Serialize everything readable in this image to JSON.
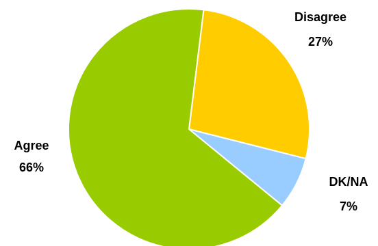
{
  "chart_data": {
    "type": "pie",
    "title": "",
    "slices": [
      {
        "name": "Disagree",
        "value": 27,
        "value_label": "27%",
        "color": "#FFCC00"
      },
      {
        "name": "DK/NA",
        "value": 7,
        "value_label": "7%",
        "color": "#99CCFF"
      },
      {
        "name": "Agree",
        "value": 66,
        "value_label": "66%",
        "color": "#99CC00"
      }
    ],
    "start_angle_deg": 7,
    "direction": "clockwise",
    "legend": "none"
  }
}
